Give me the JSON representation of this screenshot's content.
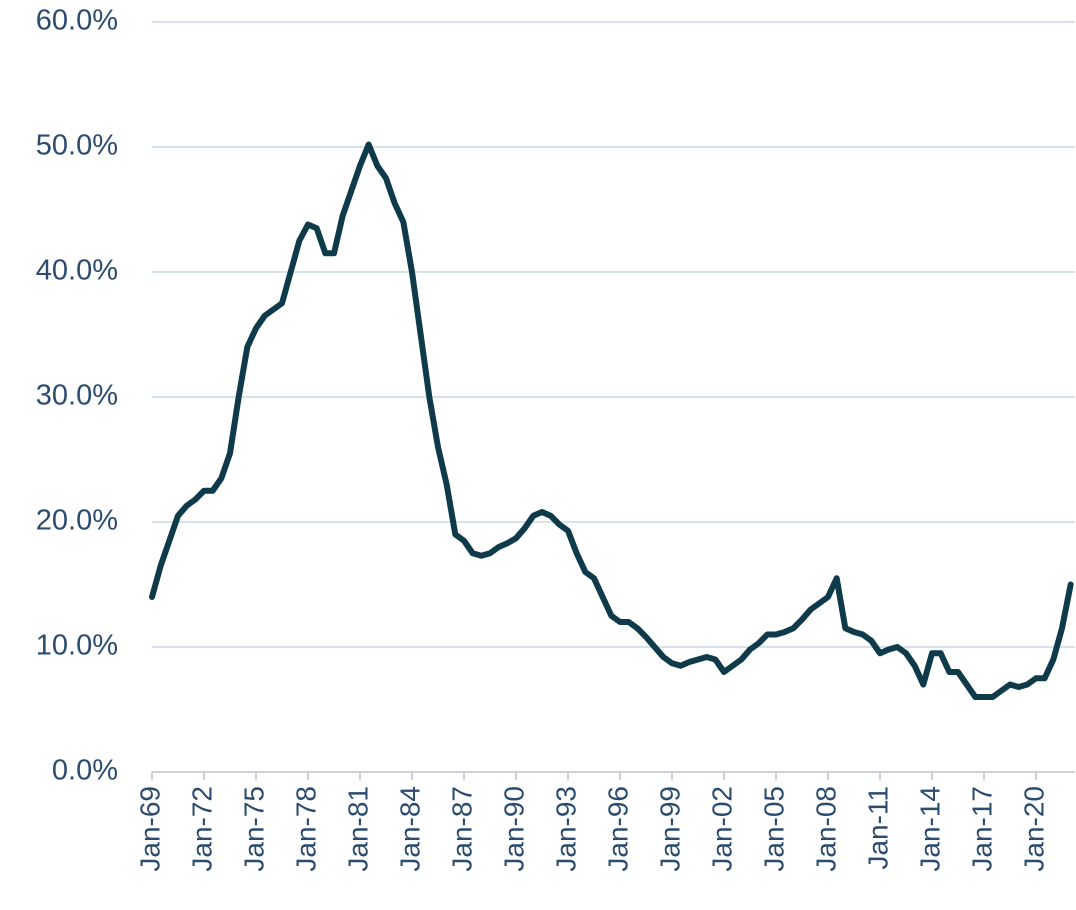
{
  "chart_data": {
    "type": "line",
    "categories": [
      "Jan-69",
      null,
      null,
      null,
      null,
      null,
      "Jan-72",
      null,
      null,
      null,
      null,
      null,
      "Jan-75",
      null,
      null,
      null,
      null,
      null,
      "Jan-78",
      null,
      null,
      null,
      null,
      null,
      "Jan-81",
      null,
      null,
      null,
      null,
      null,
      "Jan-84",
      null,
      null,
      null,
      null,
      null,
      "Jan-87",
      null,
      null,
      null,
      null,
      null,
      "Jan-90",
      null,
      null,
      null,
      null,
      null,
      "Jan-93",
      null,
      null,
      null,
      null,
      null,
      "Jan-96",
      null,
      null,
      null,
      null,
      null,
      "Jan-99",
      null,
      null,
      null,
      null,
      null,
      "Jan-02",
      null,
      null,
      null,
      null,
      null,
      "Jan-05",
      null,
      null,
      null,
      null,
      null,
      "Jan-08",
      null,
      null,
      null,
      null,
      null,
      "Jan-11",
      null,
      null,
      null,
      null,
      null,
      "Jan-14",
      null,
      null,
      null,
      null,
      null,
      "Jan-17",
      null,
      null,
      null,
      null,
      null,
      "Jan-20",
      null,
      null,
      null,
      null
    ],
    "values": [
      14,
      16.5,
      18.5,
      20.5,
      21.3,
      21.8,
      22.5,
      22.5,
      23.5,
      25.5,
      30,
      34,
      35.5,
      36.5,
      37,
      37.5,
      40,
      42.5,
      43.8,
      43.5,
      41.5,
      41.5,
      44.5,
      46.5,
      48.5,
      50.2,
      48.5,
      47.5,
      45.5,
      44,
      40,
      35,
      30,
      26,
      23,
      19,
      18.5,
      17.5,
      17.3,
      17.5,
      18,
      18.3,
      18.7,
      19.5,
      20.5,
      20.8,
      20.5,
      19.8,
      19.3,
      17.5,
      16,
      15.5,
      14,
      12.5,
      12,
      12,
      11.5,
      10.8,
      10,
      9.2,
      8.7,
      8.5,
      8.8,
      9,
      9.2,
      9,
      8,
      8.5,
      9,
      9.8,
      10.3,
      11,
      11,
      11.2,
      11.5,
      12.2,
      13,
      13.5,
      14,
      15.5,
      11.5,
      11.2,
      11,
      10.5,
      9.5,
      9.8,
      10,
      9.5,
      8.5,
      7,
      9.5,
      9.5,
      8,
      8,
      7,
      6,
      6,
      6,
      6.5,
      7,
      6.8,
      7,
      7.5,
      7.5,
      9,
      11.5,
      15
    ],
    "color": "#0e3a4a",
    "ylim": [
      0,
      60
    ],
    "yticks": [
      {
        "value": 0,
        "label": "0.0%"
      },
      {
        "value": 10,
        "label": "10.0%"
      },
      {
        "value": 20,
        "label": "20.0%"
      },
      {
        "value": 30,
        "label": "30.0%"
      },
      {
        "value": 40,
        "label": "40.0%"
      },
      {
        "value": 50,
        "label": "50.0%"
      },
      {
        "value": 60,
        "label": "60.0%"
      }
    ],
    "grid": true
  }
}
